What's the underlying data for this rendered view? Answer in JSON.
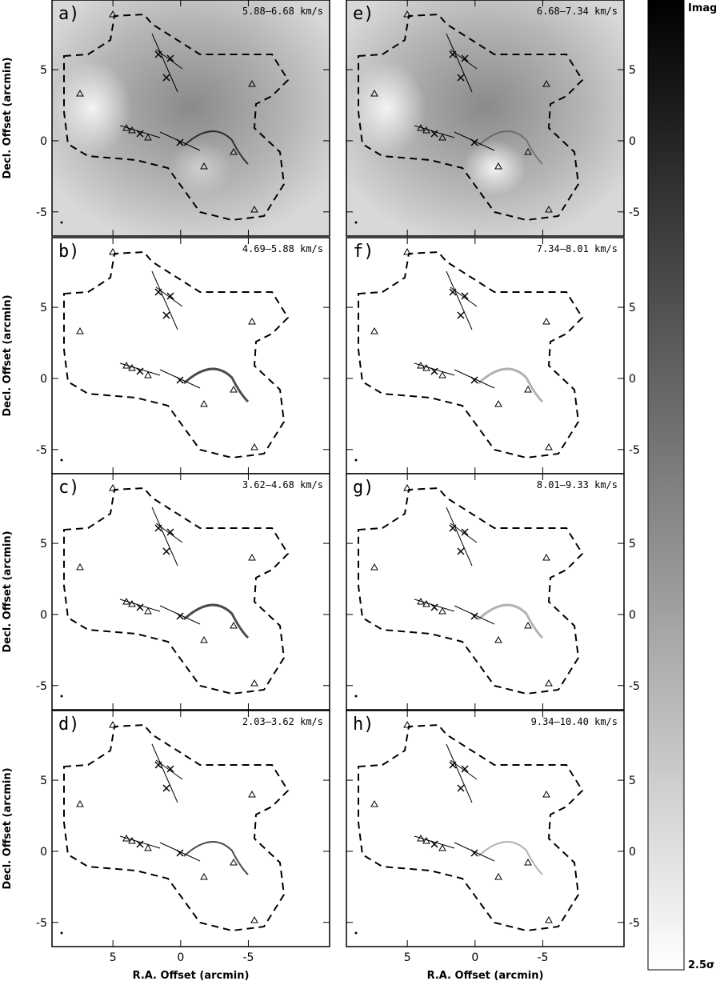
{
  "figure": {
    "x_label": "R.A. Offset (arcmin)",
    "y_label": "Decl. Offset (arcmin)",
    "xlim": [
      9.5,
      -11
    ],
    "ylim": [
      -6.7,
      9.9
    ],
    "xticks": [
      5,
      0,
      -5
    ],
    "yticks": [
      -5,
      0,
      5
    ],
    "panels": [
      {
        "label": "a)",
        "range": "5.88–6.68 km/s"
      },
      {
        "label": "b)",
        "range": "4.69–5.88 km/s"
      },
      {
        "label": "c)",
        "range": "3.62–4.68 km/s"
      },
      {
        "label": "d)",
        "range": "2.03–3.62 km/s"
      },
      {
        "label": "e)",
        "range": "6.68–7.34 km/s"
      },
      {
        "label": "f)",
        "range": "7.34–8.01 km/s"
      },
      {
        "label": "g)",
        "range": "8.01–9.33 km/s"
      },
      {
        "label": "h)",
        "range": "9.34–10.40 km/s"
      }
    ],
    "colorbar": {
      "top": "Image max.",
      "bottom": "2.5σ"
    }
  }
}
